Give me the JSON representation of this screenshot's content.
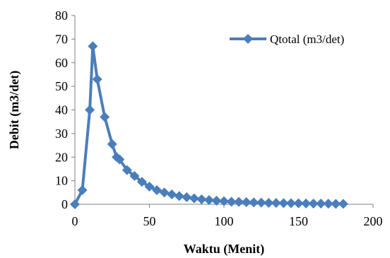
{
  "chart_data": {
    "type": "line",
    "xlabel": "Waktu (Menit)",
    "ylabel": "Debit (m3/det)",
    "xlim": [
      0,
      200
    ],
    "ylim": [
      0,
      80
    ],
    "xticks": [
      0,
      50,
      100,
      150,
      200
    ],
    "yticks": [
      0,
      10,
      20,
      30,
      40,
      50,
      60,
      70,
      80
    ],
    "grid": false,
    "legend_position": "top-right",
    "series": [
      {
        "name": "Qtotal (m3/det)",
        "color": "#4a7ebb",
        "marker": "diamond",
        "x": [
          0,
          5,
          10,
          12,
          15,
          20,
          25,
          28,
          30,
          35,
          40,
          45,
          50,
          55,
          60,
          65,
          70,
          75,
          80,
          85,
          90,
          95,
          100,
          105,
          110,
          115,
          120,
          125,
          130,
          135,
          140,
          145,
          150,
          155,
          160,
          165,
          170,
          175,
          180
        ],
        "y": [
          0,
          6,
          40,
          67,
          53,
          37,
          25.5,
          20,
          19,
          14.5,
          12,
          9.5,
          7.5,
          6,
          5,
          4.2,
          3.5,
          3,
          2.5,
          2.1,
          1.8,
          1.5,
          1.3,
          1.1,
          1,
          0.9,
          0.8,
          0.7,
          0.6,
          0.55,
          0.5,
          0.45,
          0.4,
          0.35,
          0.3,
          0.3,
          0.25,
          0.2,
          0.2
        ]
      }
    ]
  }
}
